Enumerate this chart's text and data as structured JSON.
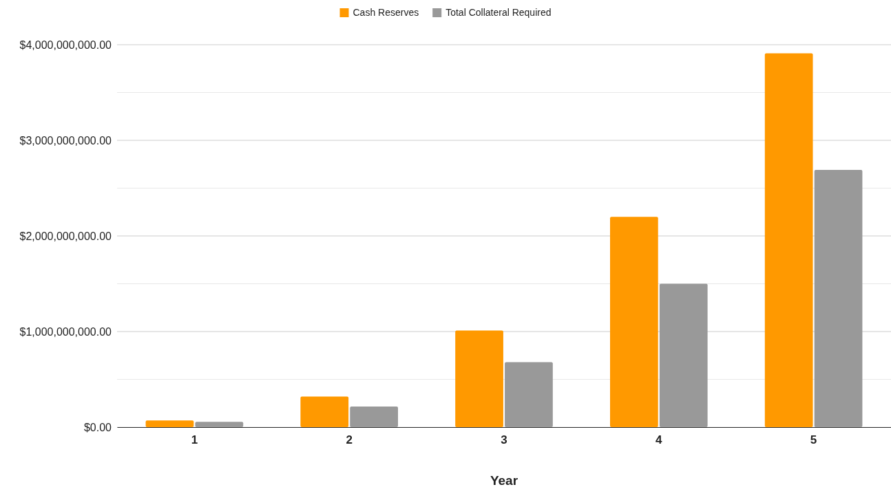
{
  "chart_data": {
    "type": "bar",
    "xlabel": "Year",
    "categories": [
      "1",
      "2",
      "3",
      "4",
      "5"
    ],
    "series": [
      {
        "name": "Cash Reserves",
        "color": "#ff9900",
        "values": [
          70000000,
          320000000,
          1010000000,
          2200000000,
          3910000000
        ]
      },
      {
        "name": "Total Collateral Required",
        "color": "#999999",
        "values": [
          55000000,
          215000000,
          680000000,
          1500000000,
          2690000000
        ]
      }
    ],
    "ylim": [
      0,
      4000000000
    ],
    "yticks": [
      {
        "value": 0,
        "label": "$0.00"
      },
      {
        "value": 500000000,
        "label": null
      },
      {
        "value": 1000000000,
        "label": "$1,000,000,000.00"
      },
      {
        "value": 1500000000,
        "label": null
      },
      {
        "value": 2000000000,
        "label": "$2,000,000,000.00"
      },
      {
        "value": 2500000000,
        "label": null
      },
      {
        "value": 3000000000,
        "label": "$3,000,000,000.00"
      },
      {
        "value": 3500000000,
        "label": null
      },
      {
        "value": 4000000000,
        "label": "$4,000,000,000.00"
      }
    ],
    "grid": "y",
    "legend": "top"
  }
}
